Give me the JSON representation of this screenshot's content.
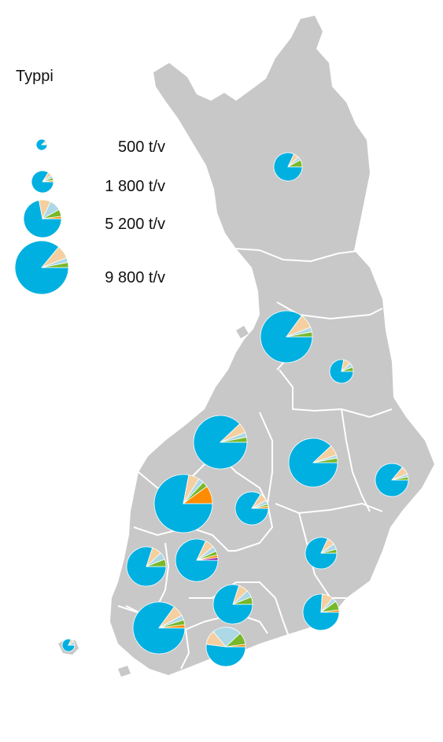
{
  "legend": {
    "title": "Typpi",
    "items": [
      {
        "label": "500 t/v",
        "value": 500
      },
      {
        "label": "1 800 t/v",
        "value": 1800
      },
      {
        "label": "5 200 t/v",
        "value": 5200
      },
      {
        "label": "9 800 t/v",
        "value": 9800
      }
    ]
  },
  "colors": {
    "land": "#c8c8c8",
    "border": "#ffffff",
    "pie_palette": [
      "#00b0e0",
      "#f5cfa0",
      "#add8e6",
      "#78b82a",
      "#ff8c00",
      "#8e24aa",
      "#e6e6e6"
    ]
  },
  "map": {
    "chart_data": {
      "type": "pie-map",
      "regions": [
        {
          "name": "lapland",
          "values": [
            82,
            6,
            4,
            8
          ]
        },
        {
          "name": "north-ostrobothnia",
          "values": [
            85,
            9,
            3,
            3
          ]
        },
        {
          "name": "kainuu",
          "values": [
            78,
            10,
            6,
            6
          ]
        },
        {
          "name": "central-ostrobothnia",
          "values": [
            88,
            6,
            3,
            3
          ]
        },
        {
          "name": "north-savo",
          "values": [
            88,
            7,
            2,
            3
          ]
        },
        {
          "name": "north-karelia",
          "values": [
            86,
            8,
            3,
            3
          ]
        },
        {
          "name": "south-ostrobothnia",
          "values": [
            78,
            6,
            3,
            3,
            10
          ]
        },
        {
          "name": "central-finland",
          "values": [
            84,
            8,
            4,
            2,
            2
          ]
        },
        {
          "name": "south-savo",
          "values": [
            82,
            8,
            6,
            4
          ]
        },
        {
          "name": "satakunta",
          "values": [
            80,
            8,
            6,
            6
          ]
        },
        {
          "name": "pirkanmaa",
          "values": [
            82,
            7,
            4,
            3,
            2,
            2
          ]
        },
        {
          "name": "kanta-hame",
          "values": [
            80,
            8,
            6,
            6
          ]
        },
        {
          "name": "kymenlaakso",
          "values": [
            76,
            10,
            4,
            8,
            2
          ]
        },
        {
          "name": "southwest-finland",
          "values": [
            85,
            7,
            3,
            3,
            2
          ]
        },
        {
          "name": "uusimaa",
          "values": [
            52,
            12,
            24,
            10,
            2
          ]
        },
        {
          "name": "aland",
          "values": [
            82,
            8,
            10
          ]
        }
      ]
    }
  }
}
